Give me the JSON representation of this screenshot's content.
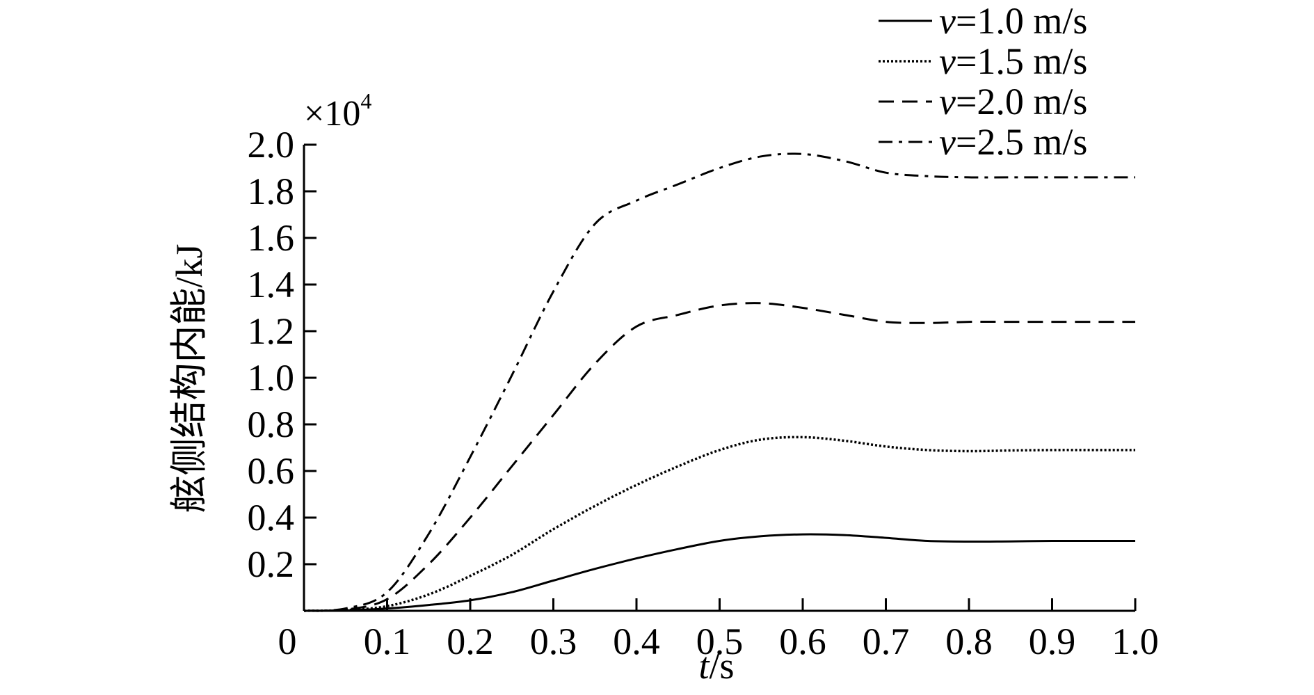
{
  "chart_data": {
    "type": "line",
    "xlabel": {
      "var": "t",
      "unit": "/s"
    },
    "ylabel": "舷侧结构内能/kJ",
    "y_multiplier": {
      "base": "×10",
      "exponent": "4"
    },
    "xlim": [
      0,
      1.0
    ],
    "ylim": [
      0,
      2.0
    ],
    "x_ticks": [
      {
        "value": 0,
        "label": "0"
      },
      {
        "value": 0.1,
        "label": "0.1"
      },
      {
        "value": 0.2,
        "label": "0.2"
      },
      {
        "value": 0.3,
        "label": "0.3"
      },
      {
        "value": 0.4,
        "label": "0.4"
      },
      {
        "value": 0.5,
        "label": "0.5"
      },
      {
        "value": 0.6,
        "label": "0.6"
      },
      {
        "value": 0.7,
        "label": "0.7"
      },
      {
        "value": 0.8,
        "label": "0.8"
      },
      {
        "value": 0.9,
        "label": "0.9"
      },
      {
        "value": 1.0,
        "label": "1.0"
      }
    ],
    "y_ticks": [
      {
        "value": 0.2,
        "label": "0.2"
      },
      {
        "value": 0.4,
        "label": "0.4"
      },
      {
        "value": 0.6,
        "label": "0.6"
      },
      {
        "value": 0.8,
        "label": "0.8"
      },
      {
        "value": 1.0,
        "label": "1.0"
      },
      {
        "value": 1.2,
        "label": "1.2"
      },
      {
        "value": 1.4,
        "label": "1.4"
      },
      {
        "value": 1.6,
        "label": "1.6"
      },
      {
        "value": 1.8,
        "label": "1.8"
      },
      {
        "value": 2.0,
        "label": "2.0"
      }
    ],
    "grid": false,
    "legend_position": "top-right",
    "x": [
      0,
      0.05,
      0.1,
      0.15,
      0.2,
      0.25,
      0.3,
      0.35,
      0.4,
      0.45,
      0.5,
      0.55,
      0.6,
      0.65,
      0.7,
      0.75,
      0.8,
      0.85,
      0.9,
      0.95,
      1.0
    ],
    "series": [
      {
        "name": "v=1.0 m/s",
        "var": "v",
        "rest": "=1.0 m/s",
        "style": "solid",
        "values": [
          0,
          0.002,
          0.01,
          0.025,
          0.045,
          0.08,
          0.13,
          0.18,
          0.225,
          0.265,
          0.3,
          0.32,
          0.328,
          0.325,
          0.313,
          0.3,
          0.297,
          0.298,
          0.3,
          0.3,
          0.3
        ]
      },
      {
        "name": "v=1.5 m/s",
        "var": "v",
        "rest": "=1.5 m/s",
        "style": "dotted",
        "values": [
          0,
          0.003,
          0.02,
          0.07,
          0.15,
          0.24,
          0.35,
          0.45,
          0.54,
          0.62,
          0.69,
          0.735,
          0.745,
          0.73,
          0.705,
          0.69,
          0.685,
          0.688,
          0.69,
          0.69,
          0.69
        ]
      },
      {
        "name": "v=2.0 m/s",
        "var": "v",
        "rest": "=2.0 m/s",
        "style": "dashed",
        "values": [
          0,
          0.005,
          0.05,
          0.2,
          0.4,
          0.62,
          0.84,
          1.06,
          1.22,
          1.27,
          1.31,
          1.32,
          1.3,
          1.27,
          1.24,
          1.235,
          1.24,
          1.24,
          1.24,
          1.24,
          1.24
        ]
      },
      {
        "name": "v=2.5 m/s",
        "var": "v",
        "rest": "=2.5 m/s",
        "style": "dashdot",
        "values": [
          0,
          0.01,
          0.08,
          0.33,
          0.66,
          1.01,
          1.37,
          1.66,
          1.76,
          1.83,
          1.9,
          1.95,
          1.96,
          1.93,
          1.88,
          1.865,
          1.86,
          1.86,
          1.86,
          1.86,
          1.86
        ]
      }
    ]
  }
}
